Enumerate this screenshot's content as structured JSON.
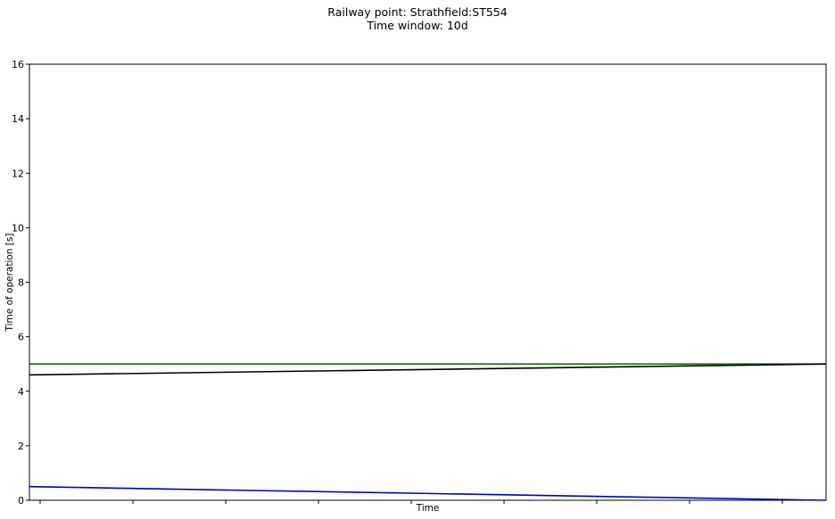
{
  "chart_data": {
    "type": "line",
    "title": "Railway point: Strathfield:ST554",
    "subtitle": "Time window: 10d",
    "xlabel": "Time",
    "ylabel": "Time of operation [s]",
    "xlim": [
      0,
      1
    ],
    "ylim": [
      0,
      16
    ],
    "yticks": [
      0,
      2,
      4,
      6,
      8,
      10,
      12,
      14,
      16
    ],
    "x_tick_count": 9,
    "grid": false,
    "series": [
      {
        "color": "#008000",
        "x": [
          0,
          1
        ],
        "values": [
          5.0,
          5.0
        ]
      },
      {
        "color": "#000000",
        "x": [
          0,
          1
        ],
        "values": [
          4.6,
          5.0
        ]
      },
      {
        "color": "#0000cc",
        "x": [
          0,
          1
        ],
        "values": [
          0.5,
          0.0
        ]
      }
    ]
  }
}
